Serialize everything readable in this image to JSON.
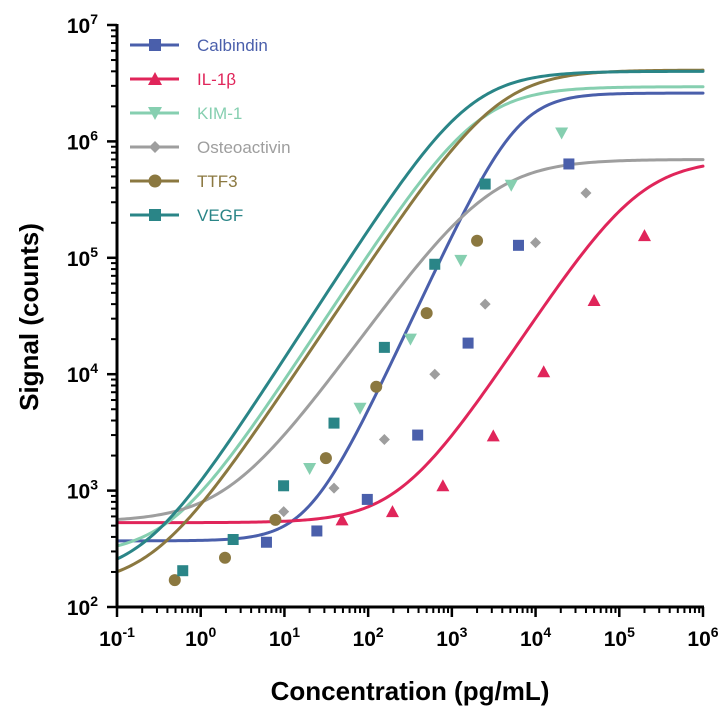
{
  "chart_data": {
    "type": "line",
    "title": "",
    "xlabel": "Concentration (pg/mL)",
    "ylabel": "Signal (counts)",
    "xscale": "log",
    "yscale": "log",
    "xlim": [
      0.1,
      1000000
    ],
    "ylim": [
      100,
      10000000
    ],
    "x_tick_labels": [
      {
        "base": "10",
        "exp": "-1"
      },
      {
        "base": "10",
        "exp": "0"
      },
      {
        "base": "10",
        "exp": "1"
      },
      {
        "base": "10",
        "exp": "2"
      },
      {
        "base": "10",
        "exp": "3"
      },
      {
        "base": "10",
        "exp": "4"
      },
      {
        "base": "10",
        "exp": "5"
      },
      {
        "base": "10",
        "exp": "6"
      }
    ],
    "y_tick_labels": [
      {
        "base": "10",
        "exp": "2"
      },
      {
        "base": "10",
        "exp": "3"
      },
      {
        "base": "10",
        "exp": "4"
      },
      {
        "base": "10",
        "exp": "5"
      },
      {
        "base": "10",
        "exp": "6"
      },
      {
        "base": "10",
        "exp": "7"
      }
    ],
    "grid": false,
    "legend_position": "top-left",
    "series": [
      {
        "name": "Calbindin",
        "color": "#4a5fab",
        "marker": "square",
        "fit": {
          "bottom": 370,
          "top": 2600000,
          "ec50": 6000,
          "hill": 1.55
        },
        "points": [
          {
            "x": 6.1,
            "y": 360
          },
          {
            "x": 24.4,
            "y": 450
          },
          {
            "x": 97.7,
            "y": 840
          },
          {
            "x": 390.6,
            "y": 3000
          },
          {
            "x": 1562.5,
            "y": 18500
          },
          {
            "x": 6250,
            "y": 128000
          },
          {
            "x": 25000,
            "y": 640000
          }
        ]
      },
      {
        "name": "IL-1β",
        "color": "#e0255a",
        "marker": "triangle-up",
        "fit": {
          "bottom": 530,
          "top": 700000,
          "ec50": 170000,
          "hill": 1.1
        },
        "points": [
          {
            "x": 48.8,
            "y": 560
          },
          {
            "x": 195.3,
            "y": 660
          },
          {
            "x": 781.3,
            "y": 1100
          },
          {
            "x": 3125,
            "y": 2950
          },
          {
            "x": 12500,
            "y": 10500
          },
          {
            "x": 50000,
            "y": 43000
          },
          {
            "x": 200000,
            "y": 155000
          }
        ]
      },
      {
        "name": "KIM-1",
        "color": "#86cfb0",
        "marker": "triangle-down",
        "fit": {
          "bottom": 280,
          "top": 2950000,
          "ec50": 2000,
          "hill": 1.1
        },
        "points": [
          {
            "x": 20,
            "y": 1550
          },
          {
            "x": 80,
            "y": 5100
          },
          {
            "x": 320,
            "y": 20000
          },
          {
            "x": 1280,
            "y": 95000
          },
          {
            "x": 5120,
            "y": 420000
          },
          {
            "x": 20480,
            "y": 1180000
          }
        ]
      },
      {
        "name": "Osteoactivin",
        "color": "#9e9e9e",
        "marker": "diamond",
        "fit": {
          "bottom": 540,
          "top": 700000,
          "ec50": 2800,
          "hill": 1.0
        },
        "points": [
          {
            "x": 9.8,
            "y": 660
          },
          {
            "x": 39.1,
            "y": 1050
          },
          {
            "x": 156.3,
            "y": 2750
          },
          {
            "x": 625,
            "y": 10000
          },
          {
            "x": 2500,
            "y": 40000
          },
          {
            "x": 10000,
            "y": 135000
          },
          {
            "x": 40000,
            "y": 360000
          }
        ]
      },
      {
        "name": "TTF3",
        "color": "#8b7840",
        "marker": "circle",
        "fit": {
          "bottom": 150,
          "top": 4100000,
          "ec50": 3500,
          "hill": 1.08
        },
        "points": [
          {
            "x": 0.49,
            "y": 170
          },
          {
            "x": 1.95,
            "y": 265
          },
          {
            "x": 7.81,
            "y": 560
          },
          {
            "x": 31.3,
            "y": 1900
          },
          {
            "x": 125,
            "y": 7800
          },
          {
            "x": 500,
            "y": 33500
          },
          {
            "x": 2000,
            "y": 140000
          }
        ]
      },
      {
        "name": "VEGF",
        "color": "#2a8587",
        "marker": "square",
        "fit": {
          "bottom": 180,
          "top": 4000000,
          "ec50": 1600,
          "hill": 1.12
        },
        "points": [
          {
            "x": 0.61,
            "y": 205
          },
          {
            "x": 2.44,
            "y": 380
          },
          {
            "x": 9.77,
            "y": 1100
          },
          {
            "x": 39.1,
            "y": 3800
          },
          {
            "x": 156.3,
            "y": 17000
          },
          {
            "x": 625,
            "y": 88000
          },
          {
            "x": 2500,
            "y": 430000
          }
        ]
      }
    ]
  }
}
